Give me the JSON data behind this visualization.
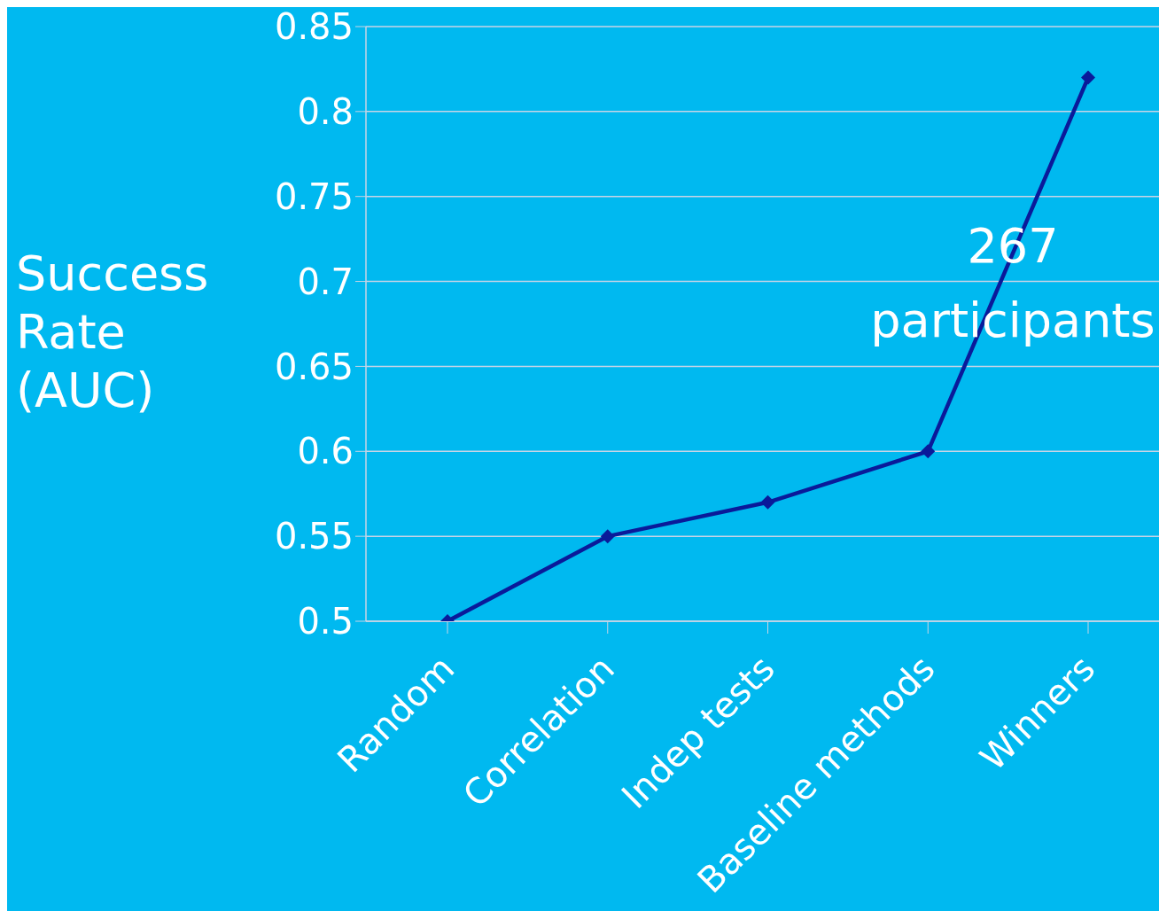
{
  "chart_data": {
    "type": "line",
    "ylabel": "Success Rate (AUC)",
    "categories": [
      "Random",
      "Correlation",
      "Indep tests",
      "Baseline methods",
      "Winners"
    ],
    "series": [
      {
        "color": "#0a1a9a",
        "values": [
          0.5,
          0.55,
          0.57,
          0.6,
          0.82
        ]
      }
    ],
    "ylim": [
      0.5,
      0.85
    ],
    "yticks": [
      0.5,
      0.55,
      0.6,
      0.65,
      0.7,
      0.75,
      0.8,
      0.85
    ],
    "grid": "y",
    "marker": "diamond",
    "line_style": "solid",
    "legend": false,
    "annotations": [
      "267 participants"
    ]
  }
}
